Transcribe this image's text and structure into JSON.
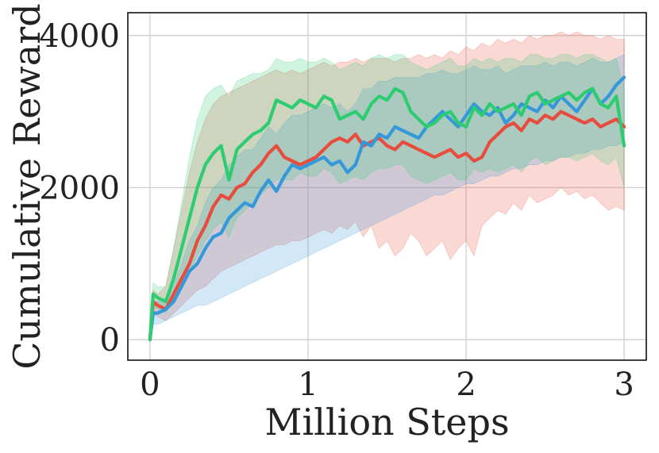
{
  "chart_data": {
    "type": "line",
    "title": "",
    "xlabel": "Million Steps",
    "ylabel": "Cumulative Reward",
    "xlim": [
      -0.14,
      3.14
    ],
    "ylim": [
      -270,
      4300
    ],
    "xticks": [
      0,
      1,
      2,
      3
    ],
    "yticks": [
      0,
      2000,
      4000
    ],
    "xtick_labels": [
      "0",
      "1",
      "2",
      "3"
    ],
    "ytick_labels": [
      "0",
      "2000",
      "4000"
    ],
    "grid": true,
    "legend": "none",
    "series": [
      {
        "color": "#e74c3c",
        "x": [
          0,
          0.02,
          0.05,
          0.1,
          0.15,
          0.2,
          0.25,
          0.3,
          0.35,
          0.4,
          0.45,
          0.5,
          0.55,
          0.6,
          0.65,
          0.7,
          0.75,
          0.8,
          0.85,
          0.9,
          0.95,
          1.0,
          1.05,
          1.1,
          1.15,
          1.2,
          1.25,
          1.3,
          1.35,
          1.4,
          1.45,
          1.5,
          1.55,
          1.6,
          1.65,
          1.7,
          1.75,
          1.8,
          1.85,
          1.9,
          1.95,
          2.0,
          2.05,
          2.1,
          2.15,
          2.2,
          2.25,
          2.3,
          2.35,
          2.4,
          2.45,
          2.5,
          2.55,
          2.6,
          2.65,
          2.7,
          2.75,
          2.8,
          2.85,
          2.9,
          2.95,
          3.0
        ],
        "values": [
          0,
          500,
          450,
          400,
          600,
          800,
          1000,
          1300,
          1500,
          1750,
          1900,
          1850,
          2000,
          2050,
          2200,
          2300,
          2450,
          2550,
          2400,
          2350,
          2300,
          2350,
          2400,
          2500,
          2600,
          2650,
          2600,
          2700,
          2550,
          2600,
          2650,
          2550,
          2500,
          2600,
          2550,
          2500,
          2450,
          2400,
          2450,
          2500,
          2400,
          2450,
          2350,
          2400,
          2600,
          2700,
          2800,
          2850,
          2750,
          2900,
          2850,
          2950,
          2900,
          3000,
          2950,
          2900,
          2850,
          2900,
          2800,
          2850,
          2900,
          2800
        ],
        "lower": [
          0,
          350,
          300,
          250,
          350,
          450,
          550,
          650,
          700,
          800,
          900,
          950,
          1000,
          1050,
          1100,
          1150,
          1200,
          1250,
          1250,
          1300,
          1300,
          1350,
          1400,
          1450,
          1400,
          1500,
          1450,
          1550,
          1350,
          1500,
          1200,
          1300,
          1100,
          1200,
          1400,
          1300,
          1100,
          1200,
          1300,
          1050,
          1200,
          1300,
          1100,
          1500,
          1600,
          1700,
          1650,
          1800,
          1700,
          1900,
          1800,
          1850,
          1900,
          2000,
          1900,
          1950,
          1850,
          1900,
          1800,
          1700,
          1750,
          1700
        ],
        "upper": [
          0,
          650,
          600,
          700,
          1200,
          1700,
          2200,
          2600,
          2900,
          3100,
          3200,
          3250,
          3300,
          3350,
          3400,
          3450,
          3500,
          3550,
          3500,
          3550,
          3500,
          3550,
          3600,
          3650,
          3600,
          3650,
          3650,
          3700,
          3650,
          3700,
          3700,
          3700,
          3650,
          3700,
          3700,
          3750,
          3700,
          3750,
          3700,
          3800,
          3750,
          3850,
          3800,
          3900,
          3850,
          3950,
          3900,
          3950,
          3900,
          4000,
          3950,
          4000,
          4000,
          4050,
          4000,
          4050,
          4000,
          4000,
          3950,
          4000,
          3950,
          3950
        ]
      },
      {
        "color": "#3498db",
        "x": [
          0,
          0.02,
          0.05,
          0.1,
          0.15,
          0.2,
          0.25,
          0.3,
          0.35,
          0.4,
          0.45,
          0.5,
          0.55,
          0.6,
          0.65,
          0.7,
          0.75,
          0.8,
          0.85,
          0.9,
          0.95,
          1.0,
          1.05,
          1.1,
          1.15,
          1.2,
          1.25,
          1.3,
          1.35,
          1.4,
          1.45,
          1.5,
          1.55,
          1.6,
          1.65,
          1.7,
          1.75,
          1.8,
          1.85,
          1.9,
          1.95,
          2.0,
          2.05,
          2.1,
          2.15,
          2.2,
          2.25,
          2.3,
          2.35,
          2.4,
          2.45,
          2.5,
          2.55,
          2.6,
          2.65,
          2.7,
          2.75,
          2.8,
          2.85,
          2.9,
          2.95,
          3.0
        ],
        "values": [
          0,
          350,
          350,
          400,
          500,
          700,
          900,
          1000,
          1200,
          1350,
          1400,
          1600,
          1700,
          1800,
          1750,
          1950,
          2100,
          1950,
          2150,
          2300,
          2250,
          2300,
          2350,
          2400,
          2300,
          2350,
          2200,
          2300,
          2600,
          2550,
          2700,
          2650,
          2800,
          2750,
          2700,
          2650,
          2800,
          2900,
          3000,
          2900,
          2800,
          2950,
          3100,
          3000,
          2950,
          3050,
          2850,
          2950,
          3100,
          3050,
          3000,
          3150,
          3050,
          3200,
          3100,
          3000,
          3150,
          3300,
          3100,
          3200,
          3350,
          3450
        ],
        "lower": [
          0,
          200,
          200,
          250,
          300,
          350,
          400,
          450,
          450,
          500,
          550,
          600,
          650,
          700,
          750,
          800,
          850,
          900,
          950,
          1000,
          1050,
          1100,
          1150,
          1200,
          1250,
          1300,
          1350,
          1400,
          1450,
          1500,
          1550,
          1600,
          1650,
          1700,
          1750,
          1800,
          1850,
          1900,
          1900,
          1950,
          2000,
          2050,
          2050,
          2100,
          2150,
          2150,
          2200,
          2250,
          2250,
          2300,
          2300,
          2350,
          2350,
          2400,
          2400,
          2450,
          2450,
          2500,
          2500,
          2550,
          2550,
          2600
        ],
        "upper": [
          0,
          500,
          500,
          550,
          700,
          1000,
          1300,
          1500,
          1800,
          2000,
          2100,
          2300,
          2400,
          2500,
          2500,
          2650,
          2800,
          2700,
          2850,
          2950,
          2950,
          3000,
          3050,
          3100,
          3050,
          3100,
          3000,
          3100,
          3300,
          3300,
          3400,
          3400,
          3450,
          3450,
          3450,
          3450,
          3500,
          3500,
          3550,
          3500,
          3500,
          3550,
          3600,
          3550,
          3550,
          3600,
          3500,
          3550,
          3600,
          3600,
          3600,
          3650,
          3600,
          3650,
          3650,
          3600,
          3650,
          3700,
          3650,
          3650,
          3700,
          3750
        ]
      },
      {
        "color": "#2ecc71",
        "x": [
          0,
          0.02,
          0.05,
          0.1,
          0.15,
          0.2,
          0.25,
          0.3,
          0.35,
          0.4,
          0.45,
          0.5,
          0.55,
          0.6,
          0.65,
          0.7,
          0.75,
          0.8,
          0.85,
          0.9,
          0.95,
          1.0,
          1.05,
          1.1,
          1.15,
          1.2,
          1.25,
          1.3,
          1.35,
          1.4,
          1.45,
          1.5,
          1.55,
          1.6,
          1.65,
          1.7,
          1.75,
          1.8,
          1.85,
          1.9,
          1.95,
          2.0,
          2.05,
          2.1,
          2.15,
          2.2,
          2.25,
          2.3,
          2.35,
          2.4,
          2.45,
          2.5,
          2.55,
          2.6,
          2.65,
          2.7,
          2.75,
          2.8,
          2.85,
          2.9,
          2.95,
          3.0
        ],
        "values": [
          0,
          600,
          550,
          500,
          800,
          1200,
          1600,
          2000,
          2300,
          2450,
          2550,
          2100,
          2500,
          2600,
          2700,
          2750,
          2850,
          3150,
          3100,
          3050,
          3150,
          3100,
          3050,
          3200,
          3150,
          2900,
          2950,
          3000,
          2900,
          3100,
          3200,
          3150,
          3300,
          3250,
          3000,
          2900,
          2800,
          2850,
          2950,
          3000,
          2850,
          2800,
          3050,
          2950,
          3100,
          3000,
          3050,
          3100,
          2950,
          3200,
          3250,
          3100,
          3150,
          3200,
          3250,
          3150,
          3250,
          3300,
          3100,
          3050,
          3200,
          2550
        ],
        "lower": [
          0,
          450,
          400,
          350,
          500,
          700,
          900,
          1100,
          1300,
          1450,
          1550,
          1350,
          1600,
          1700,
          1800,
          1900,
          2000,
          2100,
          2100,
          2100,
          2200,
          2150,
          2150,
          2250,
          2200,
          2050,
          2100,
          2150,
          2100,
          2200,
          2250,
          2250,
          2300,
          2300,
          2150,
          2100,
          2050,
          2100,
          2150,
          2200,
          2100,
          2100,
          2250,
          2200,
          2250,
          2200,
          2250,
          2300,
          2200,
          2350,
          2400,
          2300,
          2350,
          2400,
          2400,
          2350,
          2400,
          2450,
          2350,
          2300,
          2400,
          2000
        ],
        "upper": [
          0,
          750,
          700,
          700,
          1200,
          1800,
          2400,
          2900,
          3200,
          3300,
          3350,
          3200,
          3400,
          3450,
          3500,
          3500,
          3550,
          3700,
          3650,
          3650,
          3700,
          3650,
          3650,
          3700,
          3650,
          3550,
          3600,
          3650,
          3600,
          3700,
          3750,
          3700,
          3750,
          3750,
          3650,
          3600,
          3550,
          3600,
          3650,
          3700,
          3600,
          3600,
          3700,
          3650,
          3700,
          3650,
          3700,
          3700,
          3650,
          3750,
          3750,
          3700,
          3700,
          3750,
          3750,
          3700,
          3750,
          3750,
          3700,
          3650,
          3700,
          3300
        ]
      }
    ]
  }
}
